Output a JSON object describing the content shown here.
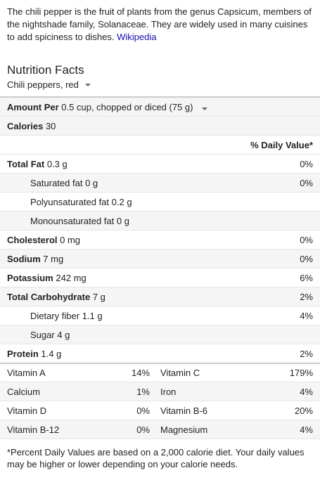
{
  "intro": {
    "text": "The chili pepper is the fruit of plants from the genus Capsicum, members of the nightshade family, Solanaceae. They are widely used in many cuisines to add spiciness to dishes.",
    "link": "Wikipedia"
  },
  "nutrition": {
    "title": "Nutrition Facts",
    "food": "Chili peppers, red",
    "amount_label": "Amount Per",
    "amount_value": "0.5 cup, chopped or diced (75 g)",
    "calories_label": "Calories",
    "calories_value": "30",
    "daily_value_header": "% Daily Value*",
    "rows": [
      {
        "label": "Total Fat",
        "amount": "0.3 g",
        "dv": "0%"
      },
      {
        "label": "Saturated fat",
        "amount": "0 g",
        "dv": "0%"
      },
      {
        "label": "Polyunsaturated fat",
        "amount": "0.2 g",
        "dv": ""
      },
      {
        "label": "Monounsaturated fat",
        "amount": "0 g",
        "dv": ""
      },
      {
        "label": "Cholesterol",
        "amount": "0 mg",
        "dv": "0%"
      },
      {
        "label": "Sodium",
        "amount": "7 mg",
        "dv": "0%"
      },
      {
        "label": "Potassium",
        "amount": "242 mg",
        "dv": "6%"
      },
      {
        "label": "Total Carbohydrate",
        "amount": "7 g",
        "dv": "2%"
      },
      {
        "label": "Dietary fiber",
        "amount": "1.1 g",
        "dv": "4%"
      },
      {
        "label": "Sugar",
        "amount": "4 g",
        "dv": ""
      },
      {
        "label": "Protein",
        "amount": "1.4 g",
        "dv": "2%"
      }
    ],
    "vitamins": [
      {
        "n1": "Vitamin A",
        "v1": "14%",
        "n2": "Vitamin C",
        "v2": "179%"
      },
      {
        "n1": "Calcium",
        "v1": "1%",
        "n2": "Iron",
        "v2": "4%"
      },
      {
        "n1": "Vitamin D",
        "v1": "0%",
        "n2": "Vitamin B-6",
        "v2": "20%"
      },
      {
        "n1": "Vitamin B-12",
        "v1": "0%",
        "n2": "Magnesium",
        "v2": "4%"
      }
    ],
    "footnote": "*Percent Daily Values are based on a 2,000 calorie diet. Your daily values may be higher or lower depending on your calorie needs."
  }
}
